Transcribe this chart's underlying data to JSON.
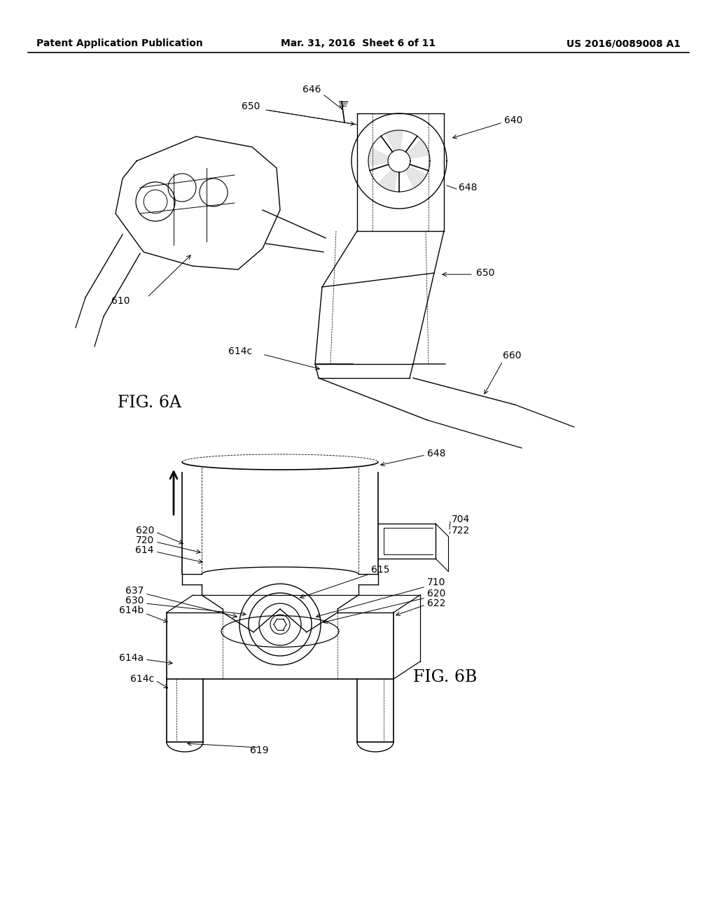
{
  "background_color": "#ffffff",
  "header_left": "Patent Application Publication",
  "header_center": "Mar. 31, 2016  Sheet 6 of 11",
  "header_right": "US 2016/0089008 A1",
  "fig6a_label": "FIG. 6A",
  "fig6b_label": "FIG. 6B",
  "line_color": "#000000",
  "text_color": "#000000"
}
